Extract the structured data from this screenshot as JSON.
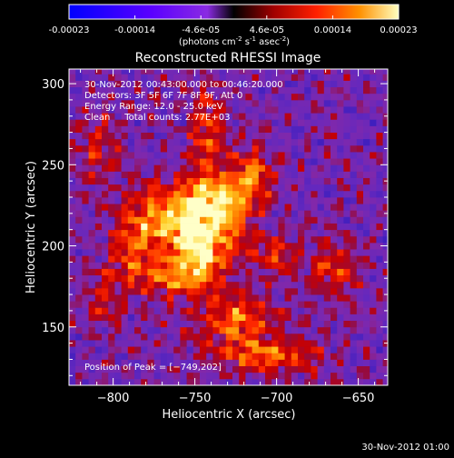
{
  "colorbar": {
    "ticks": [
      "-0.00023",
      "-0.00014",
      "-4.6e-05",
      "4.6e-05",
      "0.00014",
      "0.00023"
    ],
    "unit_label": "(photons cm",
    "unit_sup1": "-2",
    "unit_mid1": " s",
    "unit_sup2": "-1",
    "unit_mid2": " asec",
    "unit_sup3": "-2",
    "unit_end": ")"
  },
  "chart_data": {
    "type": "heatmap",
    "title": "Reconstructed RHESSI Image",
    "xlabel": "Heliocentric X (arcsec)",
    "ylabel": "Heliocentric Y (arcsec)",
    "xlim": [
      -827,
      -632
    ],
    "ylim": [
      114,
      309
    ],
    "x_ticks": [
      -800,
      -750,
      -700,
      -650
    ],
    "x_tick_labels": [
      "−800",
      "−750",
      "−700",
      "−650"
    ],
    "y_ticks": [
      150,
      200,
      250,
      300
    ],
    "y_tick_labels": [
      "150",
      "200",
      "250",
      "300"
    ],
    "colorbar_range": [
      -0.00023,
      0.00023
    ],
    "peak": [
      -749,
      202
    ],
    "annotations": [
      "30-Nov-2012 00:43:00.000 to 00:46:20.000",
      "Detectors: 3F 5F 6F 7F 8F 9F, Att 0",
      "Energy Range: 12.0 - 25.0 keV",
      "Clean     Total counts: 2.77E+03"
    ],
    "peak_label": "Position of Peak = [−749,202]",
    "sources": [
      {
        "x": -749,
        "y": 202,
        "amp": 1.0,
        "sx": 9,
        "sy": 13
      },
      {
        "x": -740,
        "y": 230,
        "amp": 0.8,
        "sx": 16,
        "sy": 10
      },
      {
        "x": -770,
        "y": 215,
        "amp": 0.7,
        "sx": 14,
        "sy": 15
      },
      {
        "x": -730,
        "y": 210,
        "amp": 0.6,
        "sx": 10,
        "sy": 14
      },
      {
        "x": -760,
        "y": 180,
        "amp": 0.6,
        "sx": 18,
        "sy": 9
      },
      {
        "x": -715,
        "y": 245,
        "amp": 0.6,
        "sx": 9,
        "sy": 12
      },
      {
        "x": -742,
        "y": 270,
        "amp": 0.55,
        "sx": 7,
        "sy": 20
      },
      {
        "x": -725,
        "y": 155,
        "amp": 0.65,
        "sx": 16,
        "sy": 11
      },
      {
        "x": -705,
        "y": 132,
        "amp": 0.6,
        "sx": 22,
        "sy": 8
      },
      {
        "x": -665,
        "y": 185,
        "amp": 0.5,
        "sx": 11,
        "sy": 12
      },
      {
        "x": -700,
        "y": 195,
        "amp": 0.45,
        "sx": 9,
        "sy": 9
      },
      {
        "x": -790,
        "y": 200,
        "amp": 0.45,
        "sx": 10,
        "sy": 18
      },
      {
        "x": -810,
        "y": 260,
        "amp": 0.35,
        "sx": 9,
        "sy": 16
      },
      {
        "x": -805,
        "y": 165,
        "amp": 0.35,
        "sx": 8,
        "sy": 12
      }
    ]
  },
  "footer": {
    "date": "30-Nov-2012 01:00"
  }
}
